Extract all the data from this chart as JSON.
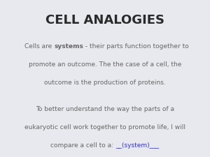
{
  "title": "CELL ANALOGIES",
  "title_color": "#2a2a2a",
  "title_fontsize": 13,
  "background_color": "#e8e9ee",
  "body_color": "#666666",
  "highlight_color": "#3333bb",
  "body_fontsize": 6.5,
  "figsize": [
    3.0,
    2.25
  ],
  "dpi": 100,
  "p1_line1_pre": "Cells are ",
  "p1_line1_bold": "systems",
  "p1_line1_post": " - their parts function together to",
  "p1_line2": "promote an outcome. The the case of a cell, the",
  "p1_line3": "outcome is the production of proteins.",
  "p2_line1": "To better understand the way the parts of a",
  "p2_line2": "eukaryotic cell work together to promote life, I will",
  "p2_line3_pre": "compare a cell to a: ",
  "p2_line3_highlight": "__(system)___"
}
